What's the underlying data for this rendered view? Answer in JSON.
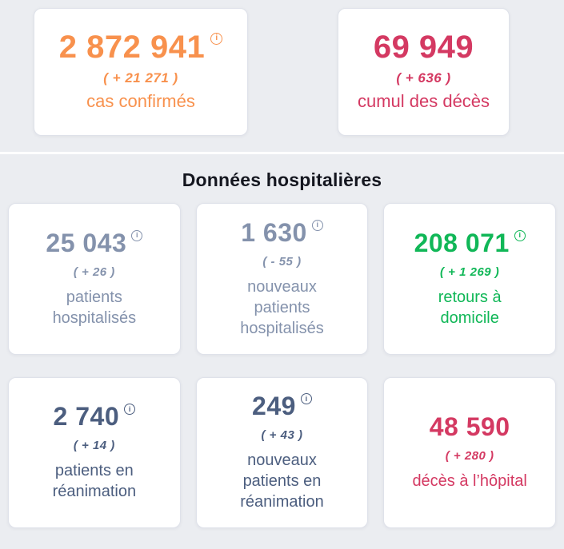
{
  "page": {
    "background_color": "#ebedf1",
    "divider_color": "#ffffff"
  },
  "summary_cards": [
    {
      "value": "2 872 941",
      "delta": "( + 21 271 )",
      "label": "cas confirmés",
      "color": "#f8914d",
      "info_icon": "i"
    },
    {
      "value": "69 949",
      "delta": "( + 636 )",
      "label": "cumul des décès",
      "color": "#d43962"
    }
  ],
  "hospital_section": {
    "title": "Données hospitalières",
    "title_color": "#14161f",
    "cards": [
      {
        "value": "25 043",
        "delta": "( + 26 )",
        "label": "patients\nhospitalisés",
        "color": "#8492ac",
        "info_icon": "i"
      },
      {
        "value": "1 630",
        "delta": "( - 55 )",
        "label": "nouveaux\npatients\nhospitalisés",
        "color": "#8492ac",
        "info_icon": "i"
      },
      {
        "value": "208 071",
        "delta": "( + 1 269 )",
        "label": "retours à\ndomicile",
        "color": "#10b757",
        "info_icon": "i"
      },
      {
        "value": "2 740",
        "delta": "( + 14 )",
        "label": "patients en\nréanimation",
        "color": "#4c5e7f",
        "info_icon": "i"
      },
      {
        "value": "249",
        "delta": "( + 43 )",
        "label": "nouveaux\npatients en\nréanimation",
        "color": "#4c5e7f",
        "info_icon": "i"
      },
      {
        "value": "48 590",
        "delta": "( + 280 )",
        "label": "décès à l’hôpital",
        "color": "#d43962"
      }
    ]
  }
}
